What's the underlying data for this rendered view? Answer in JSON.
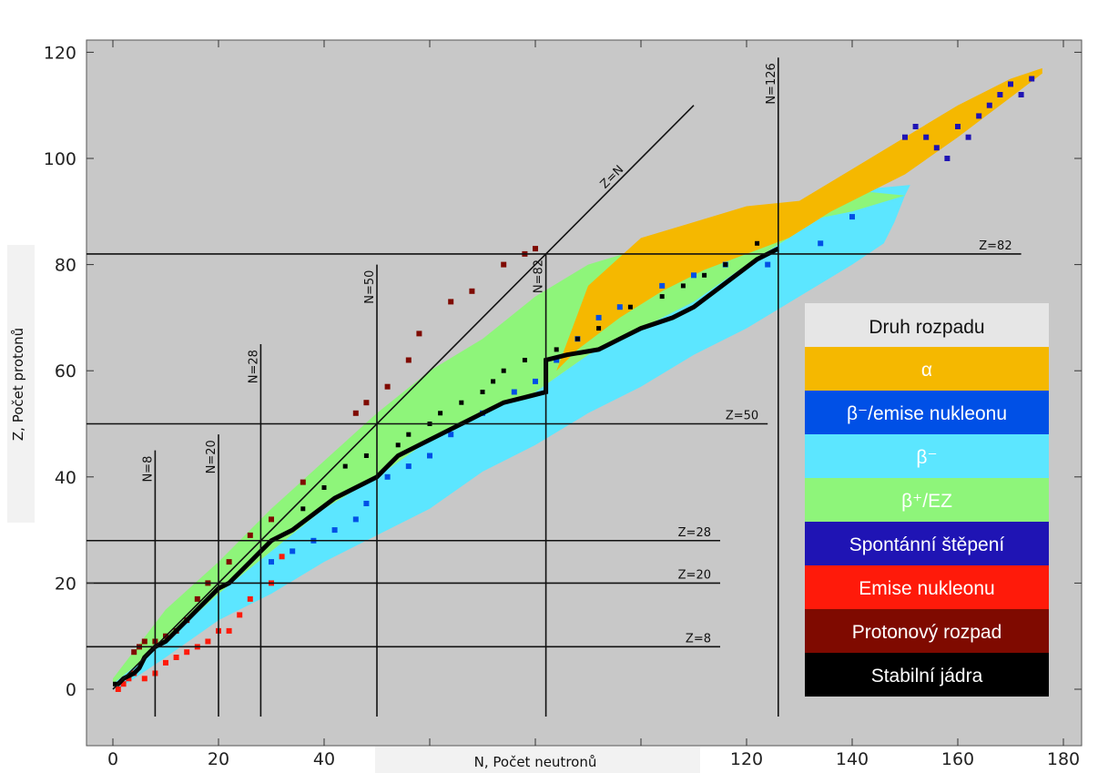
{
  "chart_data": {
    "type": "heatmap",
    "xlabel": "N, Počet neutronů",
    "ylabel": "Z, Počet protonů",
    "xlim": [
      -5,
      183
    ],
    "ylim": [
      -5,
      122
    ],
    "xticks": [
      0,
      20,
      40,
      60,
      80,
      100,
      120,
      140,
      160,
      180
    ],
    "yticks": [
      0,
      20,
      40,
      60,
      80,
      100,
      120
    ],
    "grid": false,
    "legend": {
      "title": "Druh rozpadu",
      "placement": "bottom-right",
      "entries": [
        {
          "label": "α",
          "color": "#f5b800",
          "text_color": "#ffffff"
        },
        {
          "label": "β⁻/emise nukleonu",
          "color": "#0050e6",
          "text_color": "#ffffff"
        },
        {
          "label": "β⁻",
          "color": "#5ce6ff",
          "text_color": "#ffffff"
        },
        {
          "label": "β⁺/EZ",
          "color": "#8ef57a",
          "text_color": "#ffffff"
        },
        {
          "label": "Spontánní štěpení",
          "color": "#1f14b4",
          "text_color": "#ffffff"
        },
        {
          "label": "Emise nukleonu",
          "color": "#ff1a0a",
          "text_color": "#ffffff"
        },
        {
          "label": "Protonový rozpad",
          "color": "#7f0a00",
          "text_color": "#ffffff"
        },
        {
          "label": "Stabilní jádra",
          "color": "#000000",
          "text_color": "#ffffff"
        }
      ]
    },
    "magic_numbers": {
      "vertical": [
        {
          "label": "N=8",
          "n": 8,
          "z_end": 45
        },
        {
          "label": "N=20",
          "n": 20,
          "z_end": 48
        },
        {
          "label": "N=28",
          "n": 28,
          "z_end": 65
        },
        {
          "label": "N=50",
          "n": 50,
          "z_end": 80
        },
        {
          "label": "N=82",
          "n": 82,
          "z_end": 82
        },
        {
          "label": "N=126",
          "n": 126,
          "z_end": 119
        }
      ],
      "horizontal": [
        {
          "label": "Z=8",
          "z": 8,
          "n_end": 115
        },
        {
          "label": "Z=20",
          "z": 20,
          "n_end": 115
        },
        {
          "label": "Z=28",
          "z": 28,
          "n_end": 115
        },
        {
          "label": "Z=50",
          "z": 50,
          "n_end": 124
        },
        {
          "label": "Z=82",
          "z": 82,
          "n_end": 172
        }
      ]
    },
    "diagonal": {
      "label": "Z=N",
      "from": [
        0,
        0
      ],
      "to": [
        110,
        110
      ]
    },
    "stable_line": [
      [
        0,
        1
      ],
      [
        1,
        1
      ],
      [
        2,
        2
      ],
      [
        4,
        3
      ],
      [
        5,
        4
      ],
      [
        6,
        6
      ],
      [
        8,
        8
      ],
      [
        10,
        9
      ],
      [
        12,
        11
      ],
      [
        14,
        13
      ],
      [
        16,
        15
      ],
      [
        18,
        17
      ],
      [
        20,
        19
      ],
      [
        22,
        20
      ],
      [
        24,
        22
      ],
      [
        26,
        24
      ],
      [
        28,
        26
      ],
      [
        30,
        28
      ],
      [
        34,
        30
      ],
      [
        38,
        33
      ],
      [
        42,
        36
      ],
      [
        46,
        38
      ],
      [
        50,
        40
      ],
      [
        52,
        42
      ],
      [
        54,
        44
      ],
      [
        58,
        46
      ],
      [
        62,
        48
      ],
      [
        66,
        50
      ],
      [
        70,
        52
      ],
      [
        74,
        54
      ],
      [
        78,
        55
      ],
      [
        82,
        56
      ],
      [
        82,
        62
      ],
      [
        86,
        63
      ],
      [
        92,
        64
      ],
      [
        96,
        66
      ],
      [
        100,
        68
      ],
      [
        106,
        70
      ],
      [
        110,
        72
      ],
      [
        114,
        75
      ],
      [
        118,
        78
      ],
      [
        122,
        81
      ],
      [
        126,
        83
      ]
    ],
    "bands": {
      "beta_minus": {
        "upper": [
          [
            1,
            0
          ],
          [
            10,
            6
          ],
          [
            20,
            13
          ],
          [
            30,
            18
          ],
          [
            40,
            24
          ],
          [
            50,
            29
          ],
          [
            60,
            34
          ],
          [
            70,
            41
          ],
          [
            80,
            46
          ],
          [
            90,
            52
          ],
          [
            100,
            57
          ],
          [
            110,
            63
          ],
          [
            120,
            68
          ],
          [
            130,
            74
          ],
          [
            140,
            80
          ],
          [
            146,
            84
          ],
          [
            148,
            88
          ],
          [
            150,
            93
          ],
          [
            151,
            95
          ]
        ],
        "lower": [
          [
            0,
            1
          ],
          [
            10,
            9
          ],
          [
            20,
            18
          ],
          [
            30,
            26
          ],
          [
            40,
            34
          ],
          [
            50,
            40
          ],
          [
            60,
            47
          ],
          [
            70,
            52
          ],
          [
            80,
            56
          ],
          [
            90,
            63
          ],
          [
            100,
            68
          ],
          [
            110,
            73
          ],
          [
            120,
            80
          ],
          [
            128,
            85
          ],
          [
            136,
            90
          ],
          [
            140,
            94
          ]
        ]
      },
      "beta_plus": {
        "upper": [
          [
            0,
            2
          ],
          [
            10,
            15
          ],
          [
            20,
            24
          ],
          [
            30,
            34
          ],
          [
            40,
            43
          ],
          [
            50,
            52
          ],
          [
            60,
            60
          ],
          [
            70,
            66
          ],
          [
            80,
            74
          ],
          [
            90,
            80
          ],
          [
            100,
            83
          ],
          [
            110,
            85
          ],
          [
            120,
            87
          ],
          [
            130,
            88
          ],
          [
            140,
            90
          ],
          [
            150,
            93
          ]
        ],
        "lower": [
          [
            0,
            1
          ],
          [
            10,
            9
          ],
          [
            20,
            18
          ],
          [
            30,
            26
          ],
          [
            40,
            34
          ],
          [
            50,
            40
          ],
          [
            60,
            47
          ],
          [
            70,
            52
          ],
          [
            80,
            56
          ],
          [
            90,
            63
          ],
          [
            100,
            68
          ],
          [
            110,
            73
          ],
          [
            120,
            80
          ],
          [
            128,
            85
          ],
          [
            136,
            90
          ],
          [
            140,
            94
          ]
        ]
      },
      "alpha": {
        "upper": [
          [
            84,
            60
          ],
          [
            90,
            76
          ],
          [
            100,
            85
          ],
          [
            110,
            88
          ],
          [
            120,
            91
          ],
          [
            130,
            92
          ],
          [
            140,
            98
          ],
          [
            150,
            104
          ],
          [
            160,
            110
          ],
          [
            170,
            115
          ],
          [
            176,
            117
          ]
        ],
        "lower": [
          [
            84,
            60
          ],
          [
            88,
            64
          ],
          [
            96,
            70
          ],
          [
            104,
            75
          ],
          [
            112,
            79
          ],
          [
            120,
            82
          ],
          [
            128,
            85
          ],
          [
            136,
            90
          ],
          [
            142,
            93
          ],
          [
            150,
            97
          ],
          [
            160,
            104
          ],
          [
            168,
            110
          ],
          [
            176,
            116
          ]
        ]
      }
    },
    "points": {
      "proton_decay": [
        [
          4,
          7
        ],
        [
          5,
          8
        ],
        [
          6,
          9
        ],
        [
          8,
          9
        ],
        [
          10,
          10
        ],
        [
          12,
          11
        ],
        [
          14,
          13
        ],
        [
          16,
          17
        ],
        [
          18,
          20
        ],
        [
          22,
          24
        ],
        [
          26,
          29
        ],
        [
          30,
          32
        ],
        [
          36,
          39
        ],
        [
          46,
          52
        ],
        [
          48,
          54
        ],
        [
          52,
          57
        ],
        [
          56,
          62
        ],
        [
          58,
          67
        ],
        [
          64,
          73
        ],
        [
          68,
          75
        ],
        [
          74,
          80
        ],
        [
          78,
          82
        ],
        [
          80,
          83
        ]
      ],
      "nucleon_emission": [
        [
          1,
          0
        ],
        [
          2,
          1
        ],
        [
          3,
          2
        ],
        [
          4,
          3
        ],
        [
          6,
          2
        ],
        [
          8,
          3
        ],
        [
          10,
          5
        ],
        [
          12,
          6
        ],
        [
          14,
          7
        ],
        [
          16,
          8
        ],
        [
          18,
          9
        ],
        [
          20,
          11
        ],
        [
          22,
          11
        ],
        [
          24,
          14
        ],
        [
          26,
          17
        ],
        [
          30,
          20
        ],
        [
          32,
          25
        ]
      ],
      "beta_minus_nucleon": [
        [
          30,
          24
        ],
        [
          34,
          26
        ],
        [
          38,
          28
        ],
        [
          42,
          30
        ],
        [
          46,
          32
        ],
        [
          48,
          35
        ],
        [
          52,
          40
        ],
        [
          56,
          42
        ],
        [
          60,
          44
        ],
        [
          64,
          48
        ],
        [
          70,
          52
        ],
        [
          76,
          56
        ],
        [
          80,
          58
        ],
        [
          84,
          62
        ],
        [
          88,
          66
        ],
        [
          92,
          70
        ],
        [
          96,
          72
        ],
        [
          104,
          76
        ],
        [
          110,
          78
        ],
        [
          116,
          80
        ],
        [
          124,
          80
        ],
        [
          134,
          84
        ],
        [
          140,
          89
        ]
      ],
      "spontaneous_fission": [
        [
          150,
          104
        ],
        [
          152,
          106
        ],
        [
          154,
          104
        ],
        [
          156,
          102
        ],
        [
          158,
          100
        ],
        [
          160,
          106
        ],
        [
          162,
          104
        ],
        [
          164,
          108
        ],
        [
          166,
          110
        ],
        [
          168,
          112
        ],
        [
          170,
          114
        ],
        [
          172,
          112
        ],
        [
          174,
          115
        ]
      ],
      "stable_extra": [
        [
          36,
          34
        ],
        [
          40,
          38
        ],
        [
          44,
          42
        ],
        [
          48,
          44
        ],
        [
          54,
          46
        ],
        [
          56,
          48
        ],
        [
          60,
          50
        ],
        [
          62,
          52
        ],
        [
          66,
          54
        ],
        [
          70,
          56
        ],
        [
          72,
          58
        ],
        [
          74,
          60
        ],
        [
          78,
          62
        ],
        [
          84,
          64
        ],
        [
          88,
          66
        ],
        [
          92,
          68
        ],
        [
          98,
          72
        ],
        [
          104,
          74
        ],
        [
          108,
          76
        ],
        [
          112,
          78
        ],
        [
          116,
          80
        ],
        [
          122,
          84
        ]
      ]
    }
  }
}
